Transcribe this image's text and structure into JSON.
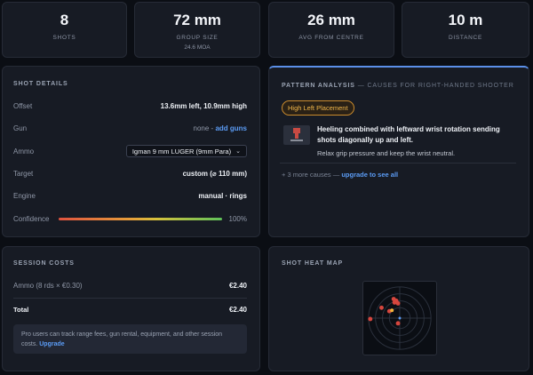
{
  "stats": [
    {
      "value": "8",
      "label": "SHOTS",
      "sub": ""
    },
    {
      "value": "72 mm",
      "label": "GROUP SIZE",
      "sub": "24.6 MOA"
    },
    {
      "value": "26 mm",
      "label": "AVG FROM CENTRE",
      "sub": ""
    },
    {
      "value": "10 m",
      "label": "DISTANCE",
      "sub": ""
    }
  ],
  "shot_details": {
    "title": "SHOT DETAILS",
    "offset": {
      "label": "Offset",
      "value": "13.6mm left, 10.9mm high"
    },
    "gun": {
      "label": "Gun",
      "value": "none",
      "sep": " - ",
      "link": "add guns"
    },
    "ammo": {
      "label": "Ammo",
      "value": "Igman 9 mm LUGER (9mm Para)"
    },
    "target": {
      "label": "Target",
      "value": "custom (⌀ 110 mm)"
    },
    "engine": {
      "label": "Engine",
      "value": "manual · rings"
    },
    "confidence": {
      "label": "Confidence",
      "value": "100%",
      "level": 1.0
    }
  },
  "pattern": {
    "title": "PATTERN ANALYSIS",
    "subtitle": "— CAUSES FOR RIGHT-HANDED SHOOTER",
    "badge": "High Left Placement",
    "cause_title": "Heeling combined with leftward wrist rotation sending shots diagonally up and left.",
    "cause_tip": "Relax grip pressure and keep the wrist neutral.",
    "more": "+ 3 more causes —",
    "more_link": "upgrade to see all"
  },
  "session": {
    "title": "SESSION COSTS",
    "ammo": {
      "label": "Ammo (8 rds × €0.30)",
      "value": "€2.40"
    },
    "total": {
      "label": "Total",
      "value": "€2.40"
    },
    "promo": "Pro users can track range fees, gun rental, equipment, and other session costs.",
    "promo_link": "Upgrade"
  },
  "heatmap": {
    "title": "SHOT HEAT MAP"
  },
  "colors": {
    "accent": "#5b9cf5",
    "badge": "#f0b64a",
    "shot": "#d6463e",
    "centre": "#f5b53a"
  }
}
